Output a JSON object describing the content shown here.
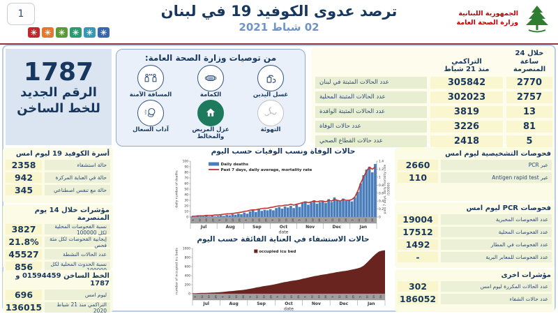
{
  "page": {
    "number": "1"
  },
  "header": {
    "title": "ترصد عدوى الكوفيد 19 في لبنان",
    "date": "02 شباط 2021",
    "logo_line1": "الجمهورية اللبنانية",
    "logo_line2": "وزارة الصحة العامة",
    "virus_badge_colors": [
      "#c1272d",
      "#e8762c",
      "#5b9b35",
      "#2e9b6e",
      "#3a96b5",
      "#3a66ae"
    ]
  },
  "hotline_panel": {
    "number": "1787",
    "label_line1": "الرقم الجديد",
    "label_line2": "للخط الساخن"
  },
  "recommendations": {
    "title": "من توصيات وزارة الصحة العامة:",
    "items": [
      {
        "icon": "hand-washing-icon",
        "label": "غسل اليدين"
      },
      {
        "icon": "face-mask-icon",
        "label": "الكمامة"
      },
      {
        "icon": "safe-distance-icon",
        "label": "المسافة الآمنة"
      },
      {
        "icon": "ventilation-icon",
        "label": "التهوئة"
      },
      {
        "icon": "home-isolation-icon",
        "label": "عزل المريض والمخالط"
      },
      {
        "icon": "cough-etiquette-icon",
        "label": "آداب السعال"
      }
    ]
  },
  "summary_table": {
    "col_24h_line1": "خلال 24 ساعة",
    "col_24h_line2": "المنصرمة",
    "col_cum_line1": "التراكمي",
    "col_cum_line2": "منذ 21 شباط",
    "rows": [
      {
        "label": "عدد الحالات المثبتة في لبنان",
        "cumulative": "305842",
        "last24h": "2770"
      },
      {
        "label": "عدد الحالات المثبتة المحلية",
        "cumulative": "302023",
        "last24h": "2757"
      },
      {
        "label": "عدد الحالات المثبتة الوافدة",
        "cumulative": "3819",
        "last24h": "13"
      },
      {
        "label": "عدد حالات الوفاة",
        "cumulative": "3226",
        "last24h": "81"
      },
      {
        "label": "عدد حالات القطاع الصحي",
        "cumulative": "2418",
        "last24h": "5"
      }
    ]
  },
  "left_sections": [
    {
      "title": "أسرة الكوفيد 19 ليوم امس",
      "rows": [
        {
          "value": "2358",
          "label": "حالة استشفاء"
        },
        {
          "value": "942",
          "label": "حالة في العناية المركزة"
        },
        {
          "value": "345",
          "label": "حالة مع تنفس اصطناعي"
        }
      ]
    },
    {
      "title": "مؤشرات خلال 14 يوم المنصرمة",
      "rows": [
        {
          "value": "3827",
          "label": "نسبة الفحوصات المحلية لكل 100000"
        },
        {
          "value": "21.8%",
          "label": "إيجابية الفحوصات لكل مئة فحص"
        },
        {
          "value": "45527",
          "label": "عدد الحالات النشطة"
        },
        {
          "value": "856",
          "label": "نسبة الحدوث المحلية لكل 100000"
        }
      ]
    },
    {
      "title": "الخط الساخن 01594459 و 1787",
      "rows": [
        {
          "value": "696",
          "label": "ليوم امس"
        },
        {
          "value": "136015",
          "label": "التراكمي منذ 21 شباط 2020"
        }
      ]
    }
  ],
  "right_sections": [
    {
      "title": "فحوصات التشخيصية ليوم امس",
      "rows": [
        {
          "value": "2660",
          "label": "عبر PCR"
        },
        {
          "value": "110",
          "label": "عبر Antigen rapid test"
        }
      ]
    },
    {
      "title": "فحوصات PCR ليوم امس",
      "rows": [
        {
          "value": "19004",
          "label": "عدد الفحوصات المخبرية"
        },
        {
          "value": "17512",
          "label": "عدد الفحوصات المحلية"
        },
        {
          "value": "1492",
          "label": "عدد الفحوصات في المطار"
        },
        {
          "value": "-",
          "label": "عدد الفحوصات للمعابر البرية"
        }
      ]
    },
    {
      "title": "مؤشرات اخرى",
      "rows": [
        {
          "value": "302",
          "label": "عدد الحالات المكررة  ليوم امس"
        },
        {
          "value": "186052",
          "label": "عدد حالات الشفاء"
        }
      ]
    }
  ],
  "chart_data": [
    {
      "type": "bar",
      "title": "حالات الوفاة ونسب الوفيات حسب اليوم",
      "xlabel": "date",
      "x_months": [
        "Jul",
        "Aug",
        "Sep",
        "Oct",
        "Nov",
        "Dec",
        "Jan"
      ],
      "x_day_ticks": [
        "5",
        "12",
        "19",
        "26"
      ],
      "ylabel_left": "daily number of deaths",
      "ylabel_right": "past 7 days, daily mortality rate /100000",
      "ylim_left": [
        0,
        100
      ],
      "ytick_step_left": 10,
      "ylim_right": [
        0,
        1.4
      ],
      "ytick_step_right": 0.2,
      "grid": false,
      "legend_position": "top-left-inside",
      "series": [
        {
          "name": "Daily deaths",
          "type": "bar",
          "axis": "left",
          "color": "#4a7ebb",
          "values": [
            1,
            0,
            2,
            1,
            1,
            2,
            1,
            2,
            1,
            2,
            3,
            2,
            4,
            3,
            5,
            4,
            6,
            5,
            8,
            6,
            10,
            12,
            9,
            14,
            11,
            13,
            12,
            14,
            12,
            16,
            18,
            15,
            19,
            17,
            20,
            16,
            22,
            18,
            25,
            28,
            22,
            26,
            30,
            24,
            27,
            28,
            25,
            32,
            27,
            35,
            30,
            28,
            33,
            29,
            30,
            28,
            35,
            45,
            60,
            75,
            85,
            90,
            80,
            95
          ]
        },
        {
          "name": "Past 7 days, daily average, mortality rate",
          "type": "line",
          "axis": "right",
          "color": "#bf3330",
          "values": [
            0.02,
            0.02,
            0.03,
            0.03,
            0.03,
            0.04,
            0.04,
            0.04,
            0.05,
            0.05,
            0.06,
            0.07,
            0.08,
            0.08,
            0.09,
            0.1,
            0.11,
            0.12,
            0.14,
            0.15,
            0.17,
            0.18,
            0.18,
            0.2,
            0.21,
            0.22,
            0.22,
            0.24,
            0.25,
            0.27,
            0.28,
            0.28,
            0.3,
            0.3,
            0.32,
            0.3,
            0.32,
            0.34,
            0.36,
            0.38,
            0.36,
            0.38,
            0.4,
            0.38,
            0.4,
            0.4,
            0.38,
            0.42,
            0.4,
            0.44,
            0.42,
            0.4,
            0.44,
            0.42,
            0.42,
            0.44,
            0.5,
            0.65,
            0.85,
            1.0,
            1.15,
            1.25,
            1.2,
            1.25
          ]
        }
      ]
    },
    {
      "type": "area",
      "title": "حالات الاستشفاء في العناية الفائقة حسب اليوم",
      "xlabel": "date",
      "x_months": [
        "Jul",
        "Aug",
        "Sep",
        "Oct",
        "Nov",
        "Dec",
        "Jan"
      ],
      "x_day_ticks": [
        "5",
        "12",
        "19",
        "26"
      ],
      "ylabel_left": "number of occupied icu beds",
      "ylim_left": [
        0,
        1000
      ],
      "ytick_step_left": 200,
      "grid": false,
      "legend_position": "top-center-inside",
      "series": [
        {
          "name": "occupied icu bed",
          "type": "area",
          "axis": "left",
          "color": "#6a2420",
          "values": [
            10,
            12,
            15,
            18,
            20,
            22,
            25,
            28,
            30,
            35,
            40,
            48,
            55,
            60,
            68,
            75,
            82,
            90,
            100,
            110,
            125,
            140,
            150,
            165,
            175,
            185,
            195,
            210,
            225,
            240,
            255,
            265,
            280,
            290,
            300,
            310,
            330,
            345,
            360,
            375,
            390,
            400,
            415,
            425,
            435,
            450,
            460,
            475,
            485,
            495,
            505,
            515,
            530,
            545,
            560,
            580,
            620,
            680,
            750,
            820,
            880,
            930,
            950,
            960
          ]
        }
      ]
    }
  ]
}
